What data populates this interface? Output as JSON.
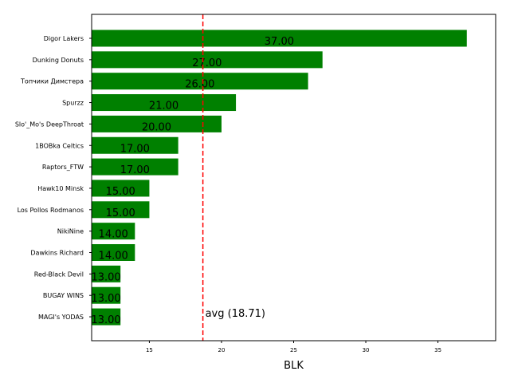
{
  "chart_data": {
    "type": "bar",
    "orientation": "horizontal",
    "categories": [
      "Digor Lakers",
      "Dunking Donuts",
      "Топчики Димстера",
      "Spurzz",
      "Slo'_Mo's DeepThroat",
      "1BOBka Celtics",
      "Raptors_FTW",
      "Hawk10 Minsk",
      "Los Pollos Rodmanos",
      "NikiNine",
      "Dawkins Richard",
      "Red-Black Devil",
      "BUGAY WINS",
      "MAGI's YODAS"
    ],
    "values": [
      37,
      27,
      26,
      21,
      20,
      17,
      17,
      15,
      15,
      14,
      14,
      13,
      13,
      13
    ],
    "value_labels": [
      "37.00",
      "27.00",
      "26.00",
      "21.00",
      "20.00",
      "17.00",
      "17.00",
      "15.00",
      "15.00",
      "14.00",
      "14.00",
      "13.00",
      "13.00",
      "13.00"
    ],
    "title": "",
    "xlabel": "BLK",
    "ylabel": "",
    "xlim": [
      11,
      39
    ],
    "xticks": [
      15,
      20,
      25,
      30,
      35
    ],
    "bar_color": "#008000",
    "average": {
      "value": 18.71,
      "label": "avg (18.71)",
      "color": "#ff0000",
      "style": "dashed"
    },
    "grid": false
  }
}
